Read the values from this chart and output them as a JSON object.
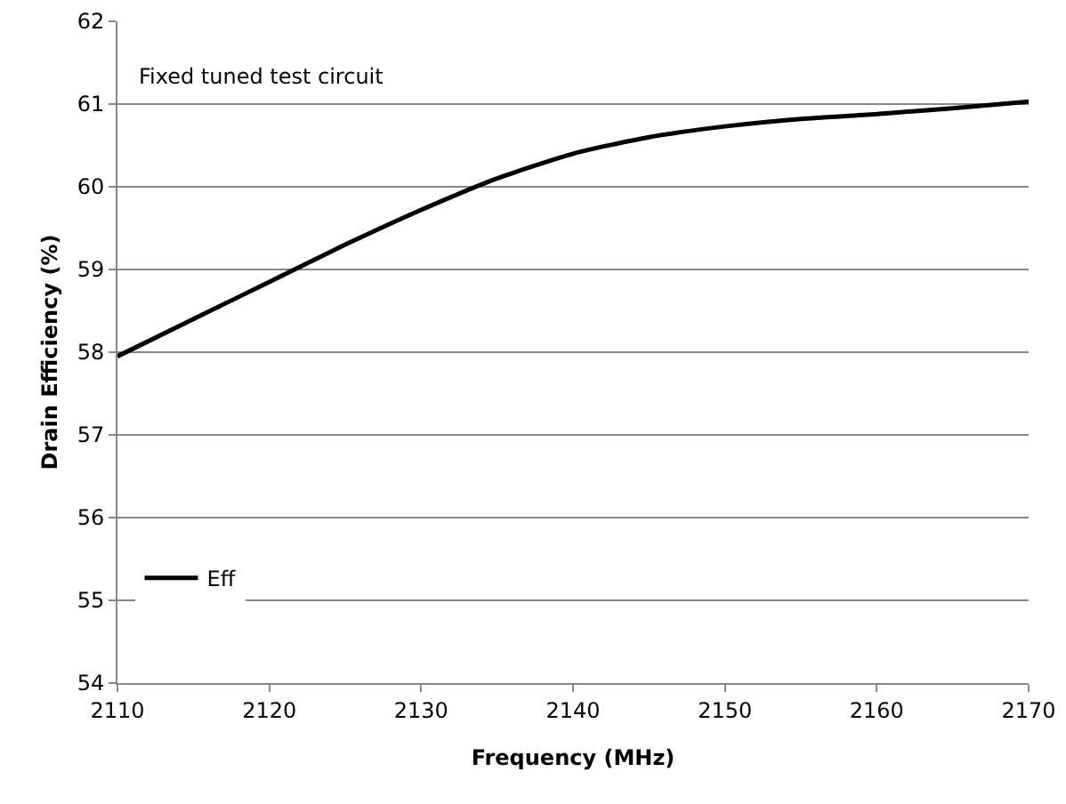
{
  "chart_data": {
    "type": "line",
    "xlabel": "Frequency (MHz)",
    "ylabel": "Drain Efficiency (%)",
    "annotations": [
      "Fixed tuned test circuit"
    ],
    "x": [
      2110,
      2115,
      2120,
      2125,
      2130,
      2135,
      2140,
      2145,
      2150,
      2155,
      2160,
      2165,
      2170
    ],
    "series": [
      {
        "name": "Eff",
        "color": "#000000",
        "values": [
          57.95,
          58.4,
          58.85,
          59.3,
          59.72,
          60.1,
          60.4,
          60.6,
          60.73,
          60.82,
          60.88,
          60.95,
          61.03
        ]
      }
    ],
    "xlim": [
      2110,
      2170
    ],
    "xticks": [
      2110,
      2120,
      2130,
      2140,
      2150,
      2160,
      2170
    ],
    "ylim": [
      54,
      62
    ],
    "yticks": [
      54,
      55,
      56,
      57,
      58,
      59,
      60,
      61,
      62
    ],
    "grid": "y",
    "legend": "bottom left",
    "marker": "none",
    "line_style": "solid"
  }
}
